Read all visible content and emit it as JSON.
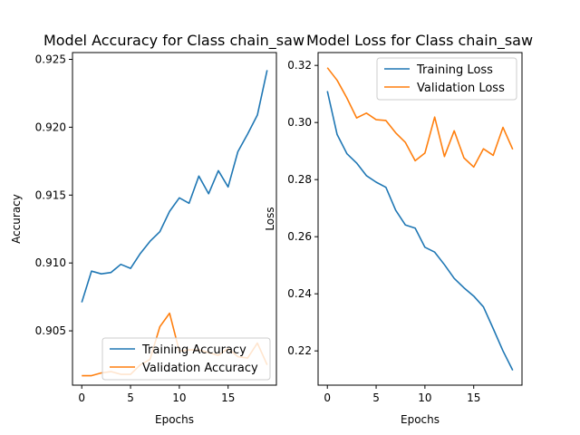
{
  "colors": {
    "series0": "#1f77b4",
    "series1": "#ff7f0e",
    "axis": "#000000",
    "background": "#ffffff"
  },
  "chart_data": [
    {
      "type": "line",
      "title": "Model Accuracy for Class chain_saw",
      "xlabel": "Epochs",
      "ylabel": "Accuracy",
      "x": [
        0,
        1,
        2,
        3,
        4,
        5,
        6,
        7,
        8,
        9,
        10,
        11,
        12,
        13,
        14,
        15,
        16,
        17,
        18,
        19
      ],
      "xlim": [
        -0.95,
        19.95
      ],
      "ylim": [
        0.901,
        0.9255
      ],
      "xticks": [
        0,
        5,
        10,
        15
      ],
      "yticks": [
        0.905,
        0.91,
        0.915,
        0.92,
        0.925
      ],
      "ytick_labels": [
        "0.905",
        "0.910",
        "0.915",
        "0.920",
        "0.925"
      ],
      "legend_position": "lower-right",
      "series": [
        {
          "name": "Training Accuracy",
          "values": [
            0.9071,
            0.9094,
            0.9092,
            0.9093,
            0.9099,
            0.9096,
            0.9107,
            0.9116,
            0.9123,
            0.9138,
            0.9148,
            0.9144,
            0.9164,
            0.9151,
            0.9168,
            0.9156,
            0.9182,
            0.9195,
            0.9209,
            0.9242
          ]
        },
        {
          "name": "Validation Accuracy",
          "values": [
            0.9017,
            0.9017,
            0.9019,
            0.902,
            0.9018,
            0.9018,
            0.9025,
            0.9029,
            0.9053,
            0.9063,
            0.9035,
            0.9036,
            0.9036,
            0.9034,
            0.9032,
            0.9037,
            0.9031,
            0.903,
            0.9041,
            0.9025
          ]
        }
      ]
    },
    {
      "type": "line",
      "title": "Model Loss for Class chain_saw",
      "xlabel": "Epochs",
      "ylabel": "Loss",
      "x": [
        0,
        1,
        2,
        3,
        4,
        5,
        6,
        7,
        8,
        9,
        10,
        11,
        12,
        13,
        14,
        15,
        16,
        17,
        18,
        19
      ],
      "xlim": [
        -0.95,
        19.95
      ],
      "ylim": [
        0.208,
        0.3245
      ],
      "xticks": [
        0,
        5,
        10,
        15
      ],
      "yticks": [
        0.22,
        0.24,
        0.26,
        0.28,
        0.3,
        0.32
      ],
      "ytick_labels": [
        "0.22",
        "0.24",
        "0.26",
        "0.28",
        "0.30",
        "0.32"
      ],
      "legend_position": "upper-right",
      "series": [
        {
          "name": "Training Loss",
          "values": [
            0.311,
            0.2958,
            0.2891,
            0.2858,
            0.2814,
            0.2791,
            0.2773,
            0.2693,
            0.2641,
            0.263,
            0.2563,
            0.2546,
            0.2502,
            0.2454,
            0.2421,
            0.2392,
            0.2354,
            0.2278,
            0.22,
            0.2132
          ]
        },
        {
          "name": "Validation Loss",
          "values": [
            0.3192,
            0.3148,
            0.3086,
            0.3016,
            0.3033,
            0.301,
            0.3007,
            0.2964,
            0.293,
            0.2866,
            0.2893,
            0.3019,
            0.2881,
            0.2971,
            0.2876,
            0.2844,
            0.2908,
            0.2885,
            0.2983,
            0.2906
          ]
        }
      ]
    }
  ]
}
